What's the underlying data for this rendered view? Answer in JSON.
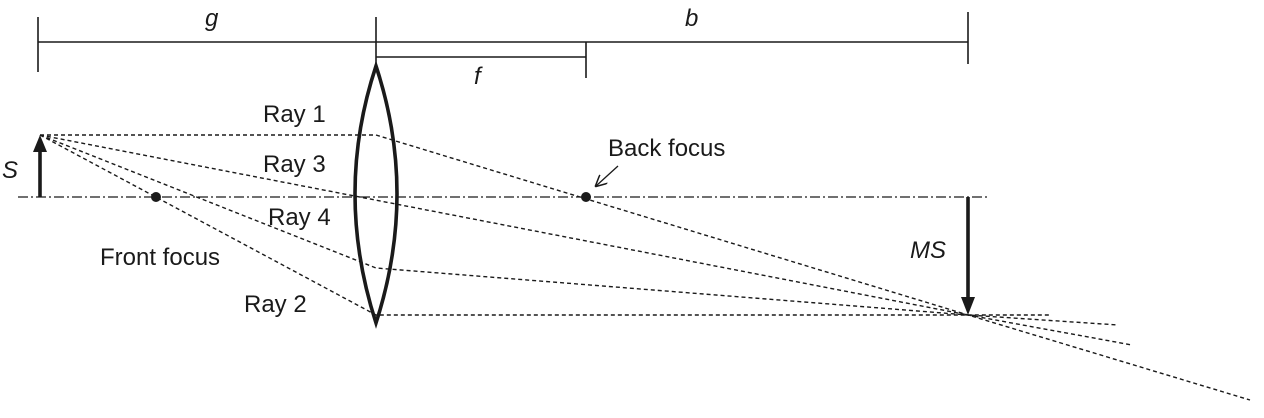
{
  "labels": {
    "g": "g",
    "b": "b",
    "f": "f",
    "s": "S",
    "ms": "MS",
    "ray1": "Ray 1",
    "ray2": "Ray 2",
    "ray3": "Ray 3",
    "ray4": "Ray 4",
    "back_focus": "Back focus",
    "front_focus": "Front focus"
  },
  "colors": {
    "ink": "#1a1a1a",
    "background": "#ffffff"
  }
}
